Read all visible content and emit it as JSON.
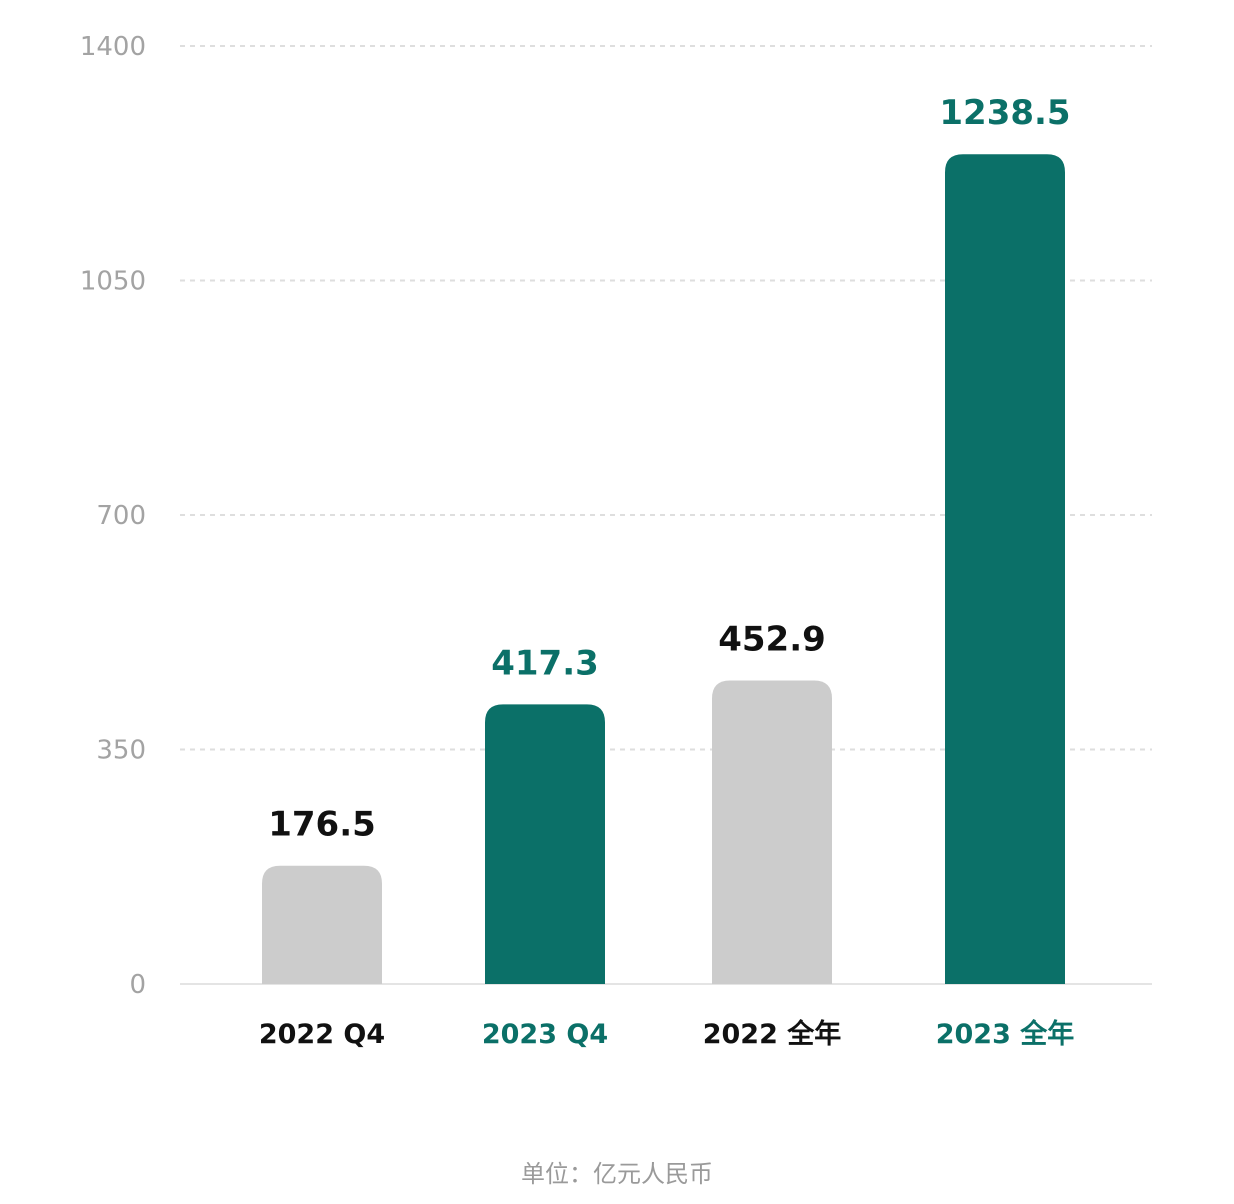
{
  "chart_data": {
    "type": "bar",
    "categories": [
      "2022 Q4",
      "2023 Q4",
      "2022 全年",
      "2023 全年"
    ],
    "values": [
      176.5,
      417.3,
      452.9,
      1238.5
    ],
    "value_labels": [
      "176.5",
      "417.3",
      "452.9",
      "1238.5"
    ],
    "ylim": [
      0,
      1400
    ],
    "yticks": [
      0,
      350,
      700,
      1050,
      1400
    ],
    "grid": true,
    "bar_colors": [
      "#cccccc",
      "#0b7068",
      "#cccccc",
      "#0b7068"
    ],
    "label_colors": [
      "#111111",
      "#0b7068",
      "#111111",
      "#0b7068"
    ],
    "unit_note": "单位：亿元人民币"
  }
}
